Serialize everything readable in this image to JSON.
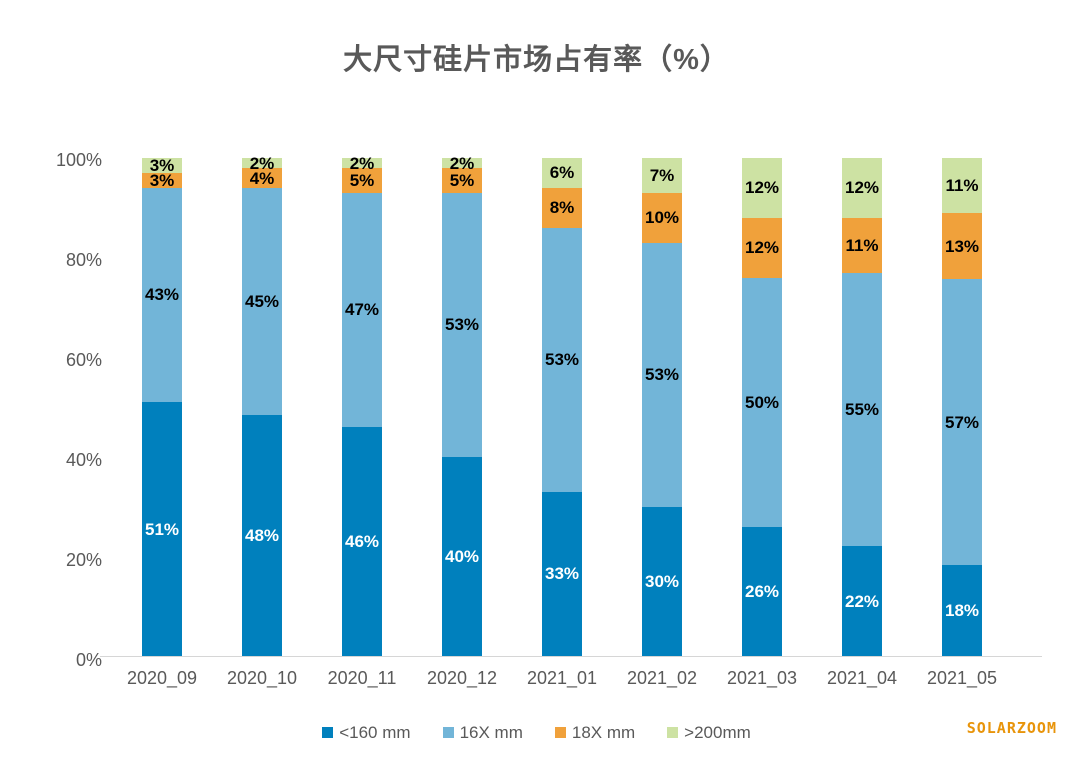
{
  "chart_data": {
    "type": "bar",
    "variant": "stacked-column-100",
    "title": "大尺寸硅片市场占有率（%）",
    "categories": [
      "2020_09",
      "2020_10",
      "2020_11",
      "2020_12",
      "2021_01",
      "2021_02",
      "2021_03",
      "2021_04",
      "2021_05"
    ],
    "series": [
      {
        "name": "<160 mm",
        "color": "#0080BD",
        "label_color": "#FFFFFF",
        "values": [
          51,
          48,
          46,
          40,
          33,
          30,
          26,
          22,
          18
        ]
      },
      {
        "name": "16X mm",
        "color": "#72B5D8",
        "label_color": "#000000",
        "values": [
          43,
          45,
          47,
          53,
          53,
          53,
          50,
          55,
          57
        ]
      },
      {
        "name": "18X mm",
        "color": "#F0A13B",
        "label_color": "#000000",
        "values": [
          3,
          4,
          5,
          5,
          8,
          10,
          12,
          11,
          13
        ]
      },
      {
        "name": ">200mm",
        "color": "#CDE2A3",
        "label_color": "#000000",
        "values": [
          3,
          2,
          2,
          2,
          6,
          7,
          12,
          12,
          11
        ]
      }
    ],
    "y_ticks": [
      "0%",
      "20%",
      "40%",
      "60%",
      "80%",
      "100%"
    ],
    "ylim": [
      0,
      100
    ],
    "grid": false,
    "legend_position": "bottom",
    "label_format": "percent"
  },
  "watermark": {
    "text": "SOLARZOOM",
    "color": "#E8940A"
  },
  "colors": {
    "title_text": "#595959",
    "axis_text": "#595959",
    "baseline": "#D6D6D6",
    "background": "#FFFFFF"
  }
}
